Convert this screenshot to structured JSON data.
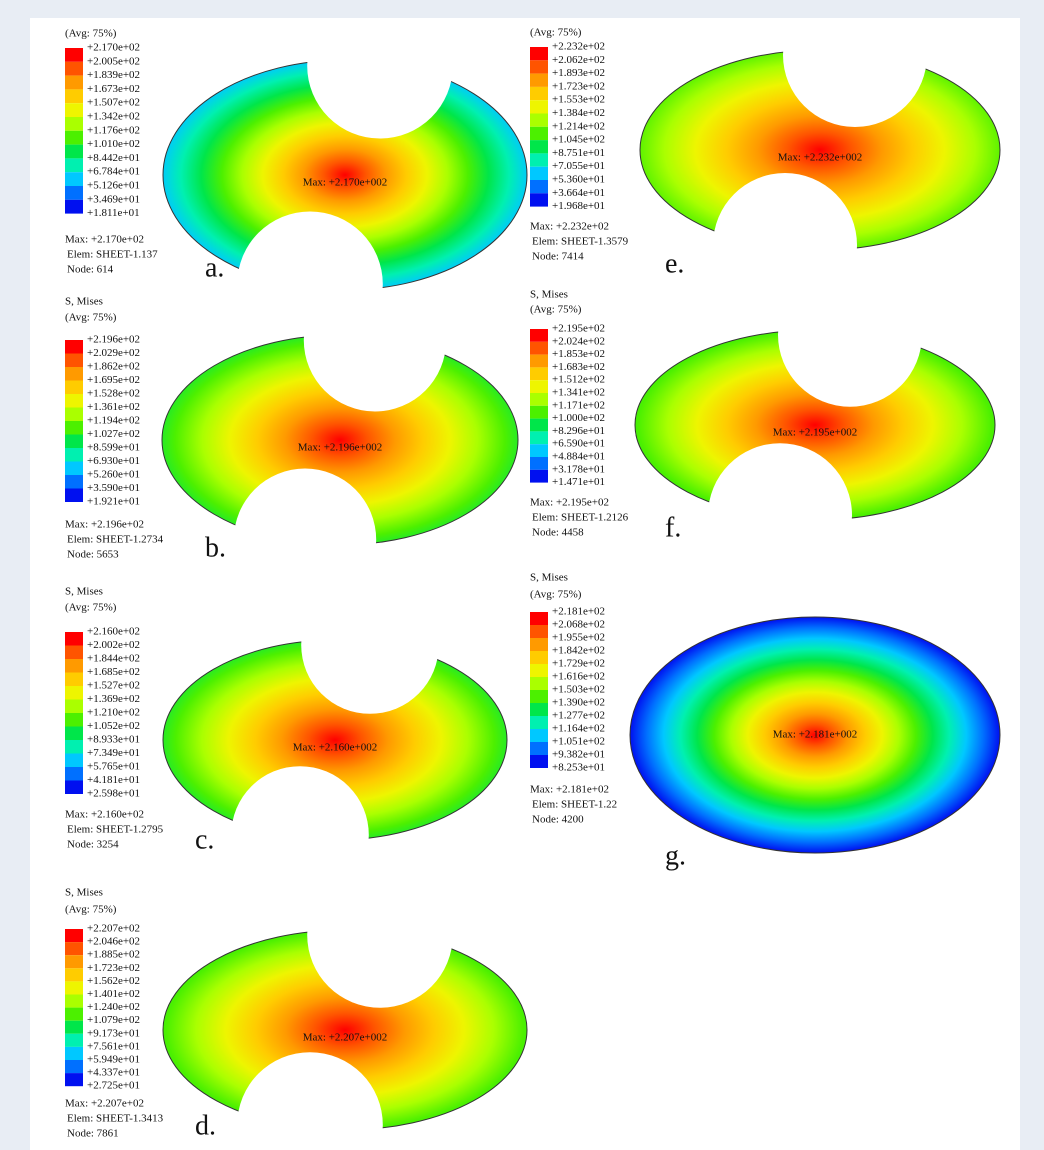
{
  "palette": [
    "#ff0000",
    "#ff5400",
    "#ff9a00",
    "#ffcc00",
    "#eef500",
    "#aaff00",
    "#4cf000",
    "#00e64a",
    "#00f0b0",
    "#00c8ff",
    "#0070ff",
    "#0010f0"
  ],
  "panels": [
    {
      "letter": "a.",
      "avg": "(Avg: 75%)",
      "legend": [
        "+2.170e+02",
        "+2.005e+02",
        "+1.839e+02",
        "+1.673e+02",
        "+1.507e+02",
        "+1.342e+02",
        "+1.176e+02",
        "+1.010e+02",
        "+8.442e+01",
        "+6.784e+01",
        "+5.126e+01",
        "+3.469e+01",
        "+1.811e+01"
      ],
      "max": "Max: +2.170e+02",
      "elem": "Elem: SHEET-1.137",
      "node": "Node: 614",
      "max_label": "Max: +2.170e+002"
    },
    {
      "letter": "b.",
      "title": "S, Mises",
      "avg": "(Avg: 75%)",
      "legend": [
        "+2.196e+02",
        "+2.029e+02",
        "+1.862e+02",
        "+1.695e+02",
        "+1.528e+02",
        "+1.361e+02",
        "+1.194e+02",
        "+1.027e+02",
        "+8.599e+01",
        "+6.930e+01",
        "+5.260e+01",
        "+3.590e+01",
        "+1.921e+01"
      ],
      "max": "Max: +2.196e+02",
      "elem": "Elem: SHEET-1.2734",
      "node": "Node: 5653",
      "max_label": "Max: +2.196e+002"
    },
    {
      "letter": "c.",
      "title": "S, Mises",
      "avg": "(Avg: 75%)",
      "legend": [
        "+2.160e+02",
        "+2.002e+02",
        "+1.844e+02",
        "+1.685e+02",
        "+1.527e+02",
        "+1.369e+02",
        "+1.210e+02",
        "+1.052e+02",
        "+8.933e+01",
        "+7.349e+01",
        "+5.765e+01",
        "+4.181e+01",
        "+2.598e+01"
      ],
      "max": "Max: +2.160e+02",
      "elem": "Elem: SHEET-1.2795",
      "node": "Node: 3254",
      "max_label": "Max: +2.160e+002"
    },
    {
      "letter": "d.",
      "title": "S, Mises",
      "avg": "(Avg: 75%)",
      "legend": [
        "+2.207e+02",
        "+2.046e+02",
        "+1.885e+02",
        "+1.723e+02",
        "+1.562e+02",
        "+1.401e+02",
        "+1.240e+02",
        "+1.079e+02",
        "+9.173e+01",
        "+7.561e+01",
        "+5.949e+01",
        "+4.337e+01",
        "+2.725e+01"
      ],
      "max": "Max: +2.207e+02",
      "elem": "Elem: SHEET-1.3413",
      "node": "Node: 7861",
      "max_label": "Max: +2.207e+002"
    },
    {
      "letter": "e.",
      "avg": "(Avg: 75%)",
      "legend": [
        "+2.232e+02",
        "+2.062e+02",
        "+1.893e+02",
        "+1.723e+02",
        "+1.553e+02",
        "+1.384e+02",
        "+1.214e+02",
        "+1.045e+02",
        "+8.751e+01",
        "+7.055e+01",
        "+5.360e+01",
        "+3.664e+01",
        "+1.968e+01"
      ],
      "max": "Max: +2.232e+02",
      "elem": "Elem: SHEET-1.3579",
      "node": "Node: 7414",
      "max_label": "Max: +2.232e+002"
    },
    {
      "letter": "f.",
      "title": "S, Mises",
      "avg": "(Avg: 75%)",
      "legend": [
        "+2.195e+02",
        "+2.024e+02",
        "+1.853e+02",
        "+1.683e+02",
        "+1.512e+02",
        "+1.341e+02",
        "+1.171e+02",
        "+1.000e+02",
        "+8.296e+01",
        "+6.590e+01",
        "+4.884e+01",
        "+3.178e+01",
        "+1.471e+01"
      ],
      "max": "Max: +2.195e+02",
      "elem": "Elem: SHEET-1.2126",
      "node": "Node: 4458",
      "max_label": "Max: +2.195e+002"
    },
    {
      "letter": "g.",
      "title": "S, Mises",
      "avg": "(Avg: 75%)",
      "legend": [
        "+2.181e+02",
        "+2.068e+02",
        "+1.955e+02",
        "+1.842e+02",
        "+1.729e+02",
        "+1.616e+02",
        "+1.503e+02",
        "+1.390e+02",
        "+1.277e+02",
        "+1.164e+02",
        "+1.051e+02",
        "+9.382e+01",
        "+8.253e+01"
      ],
      "max": "Max: +2.181e+02",
      "elem": "Elem: SHEET-1.22",
      "node": "Node: 4200",
      "max_label": "Max: +2.181e+002"
    }
  ]
}
